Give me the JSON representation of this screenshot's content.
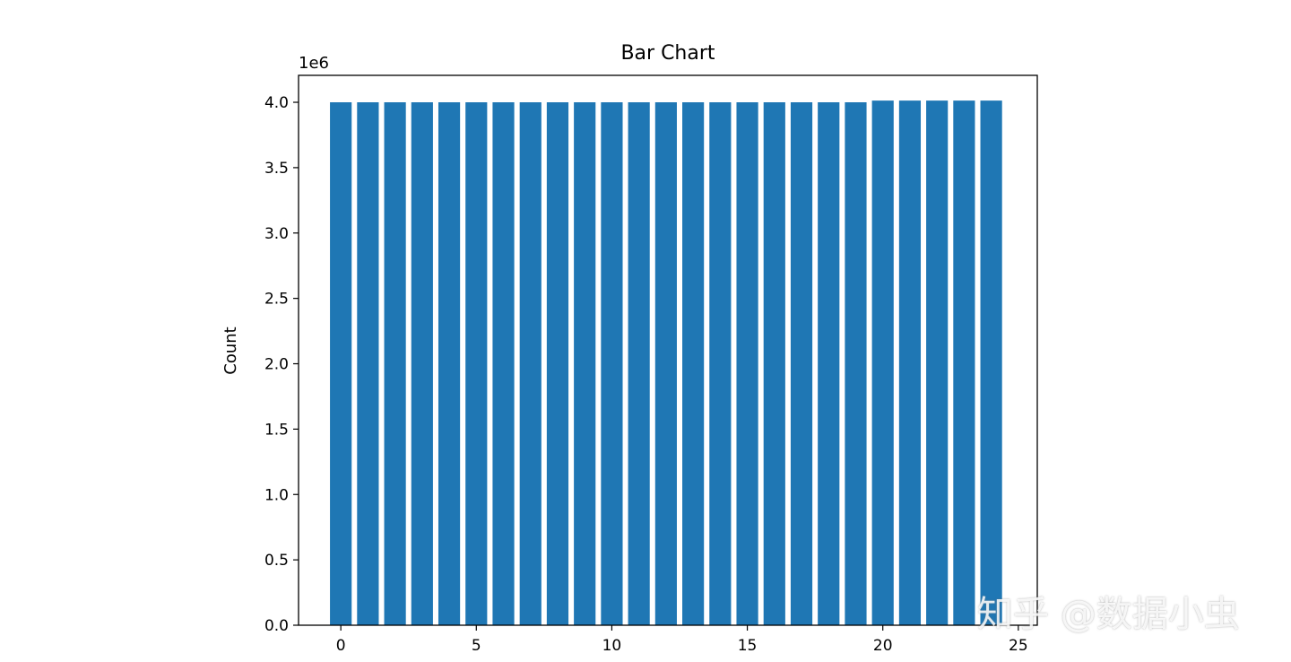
{
  "chart_data": {
    "type": "bar",
    "title": "Bar Chart",
    "xlabel": "",
    "ylabel": "Count",
    "y_offset_label": "1e6",
    "x": [
      0,
      1,
      2,
      3,
      4,
      5,
      6,
      7,
      8,
      9,
      10,
      11,
      12,
      13,
      14,
      15,
      16,
      17,
      18,
      19,
      20,
      21,
      22,
      23,
      24
    ],
    "values": [
      4000000,
      4000000,
      4000000,
      4000000,
      4000000,
      4000000,
      4000000,
      4000000,
      4000000,
      4000000,
      4000000,
      4000000,
      4000000,
      4000000,
      4000000,
      4000000,
      4000000,
      4000000,
      4000000,
      4000000,
      4013000,
      4013000,
      4013000,
      4013000,
      4013000
    ],
    "xlim": [
      -1.56,
      25.7
    ],
    "ylim": [
      0,
      4206000
    ],
    "xticks": [
      0,
      5,
      10,
      15,
      20,
      25
    ],
    "xtick_labels": [
      "0",
      "5",
      "10",
      "15",
      "20",
      "25"
    ],
    "yticks": [
      0,
      500000,
      1000000,
      1500000,
      2000000,
      2500000,
      3000000,
      3500000,
      4000000
    ],
    "ytick_labels": [
      "0.0",
      "0.5",
      "1.0",
      "1.5",
      "2.0",
      "2.5",
      "3.0",
      "3.5",
      "4.0"
    ],
    "bar_width": 0.8,
    "color": "#1f77b4",
    "grid": false,
    "legend": "none"
  },
  "watermark": "知乎 @数据小虫"
}
